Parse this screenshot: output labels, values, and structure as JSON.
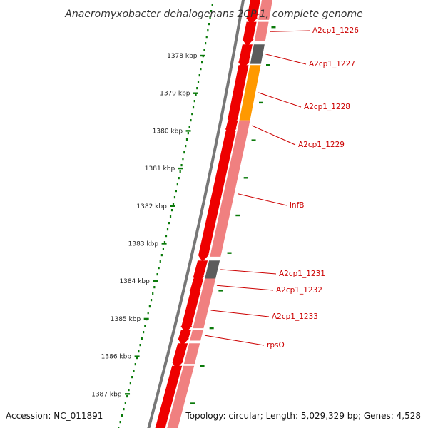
{
  "title": "Anaeromyxobacter dehalogenans 2CP-1, complete genome",
  "accession": "Accession: NC_011891",
  "topology": "Topology: circular; Length: 5,029,329 bp; Genes: 4,528",
  "ticks": [
    {
      "kbp": 1378,
      "label": "1378 kbp"
    },
    {
      "kbp": 1379,
      "label": "1379 kbp"
    },
    {
      "kbp": 1380,
      "label": "1380 kbp"
    },
    {
      "kbp": 1381,
      "label": "1381 kbp"
    },
    {
      "kbp": 1382,
      "label": "1382 kbp"
    },
    {
      "kbp": 1383,
      "label": "1383 kbp"
    },
    {
      "kbp": 1384,
      "label": "1384 kbp"
    },
    {
      "kbp": 1385,
      "label": "1385 kbp"
    },
    {
      "kbp": 1386,
      "label": "1386 kbp"
    },
    {
      "kbp": 1387,
      "label": "1387 kbp"
    }
  ],
  "genes": [
    {
      "name": "A2cp1_1226",
      "start": 1377.1,
      "end": 1377.62,
      "category": "red"
    },
    {
      "name": "A2cp1_1227",
      "start": 1377.7,
      "end": 1378.22,
      "category": "gray"
    },
    {
      "name": "A2cp1_1228",
      "start": 1378.25,
      "end": 1379.72,
      "category": "orange"
    },
    {
      "name": "A2cp1_1229",
      "start": 1379.72,
      "end": 1380.0,
      "category": "red"
    },
    {
      "name": "infB",
      "start": 1380.0,
      "end": 1383.35,
      "category": "red"
    },
    {
      "name": "A2cp1_1231",
      "start": 1383.45,
      "end": 1383.93,
      "category": "gray"
    },
    {
      "name": "A2cp1_1232",
      "start": 1383.93,
      "end": 1384.3,
      "category": "red"
    },
    {
      "name": "A2cp1_1233",
      "start": 1384.3,
      "end": 1385.25,
      "category": "red"
    },
    {
      "name": "rpsO",
      "start": 1385.3,
      "end": 1385.58,
      "category": "red"
    }
  ],
  "colors": {
    "cds": "#ee0000",
    "gene_pale": "#f08080",
    "gray": "#5c5c5c",
    "orange": "#ff9900",
    "blue": "#1c1cff",
    "tick": "#0a7a0a",
    "backbone": "#777777",
    "label": "#cc0000"
  }
}
